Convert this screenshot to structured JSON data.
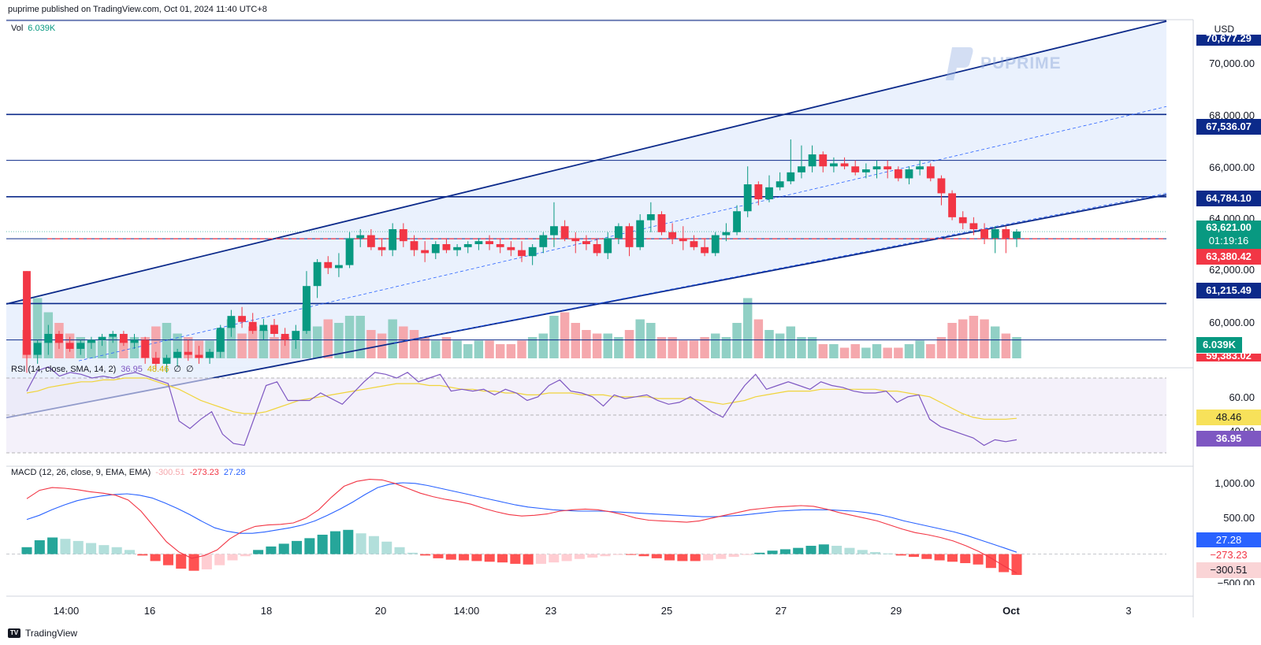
{
  "header": {
    "published": "puprime published on TradingView.com, Oct 01, 2024 11:40 UTC+8"
  },
  "currency": "USD",
  "watermark": "PUPRIME",
  "footer": {
    "brand": "TradingView"
  },
  "main_pane": {
    "legend": {
      "name": "Vol",
      "value": "6.039K"
    },
    "y_ticks": [
      "70,000.00",
      "68,000.00",
      "66,000.00",
      "64,000.00",
      "62,000.00",
      "60,000.00"
    ],
    "price_tags": {
      "top": "70,677.29",
      "level_67536": "67,536.07",
      "level_64784": "64,784.10",
      "current": "63,621.00",
      "countdown": "01:19:16",
      "level_63380": "63,380.42",
      "level_61215": "61,215.49",
      "volume": "6.039K",
      "bottom": "59,383.02"
    }
  },
  "rsi_pane": {
    "legend": {
      "name": "RSI (14, close, SMA, 14, 2)",
      "rsi": "36.95",
      "sma": "48.46",
      "e1": "∅",
      "e2": "∅"
    },
    "y_ticks": [
      "60.00",
      "40.00"
    ],
    "tags": {
      "sma": "48.46",
      "rsi": "36.95"
    }
  },
  "macd_pane": {
    "legend": {
      "name": "MACD (12, 26, close, 9, EMA, EMA)",
      "hist": "-300.51",
      "macd": "-273.23",
      "signal": "27.28"
    },
    "y_ticks": [
      "1,000.00",
      "500.00",
      "−500.00"
    ],
    "tags": {
      "signal": "27.28",
      "macd": "−273.23",
      "hist": "−300.51"
    }
  },
  "x_axis": {
    "labels": [
      "14:00",
      "16",
      "18",
      "20",
      "14:00",
      "23",
      "25",
      "27",
      "29",
      "Oct",
      "3"
    ]
  },
  "colors": {
    "up": "#089981",
    "down": "#f23645",
    "up_vol": "#91d0c5",
    "down_vol": "#f5a8ad",
    "line_navy": "#0c2a8a",
    "rsi": "#7e57c2",
    "rsi_sma": "#f7e15a",
    "macd": "#2962ff",
    "signal": "#f23645",
    "channel_fill": "#e8f0fd"
  },
  "chart_data": [
    {
      "type": "candlestick",
      "title": "",
      "y_axis_currency": "USD",
      "ylim": [
        59383,
        70677
      ],
      "x_categories_note": "",
      "candles": [
        [
          62300,
          62300,
          58900,
          59500
        ],
        [
          59500,
          60000,
          59200,
          59900
        ],
        [
          59900,
          60500,
          59500,
          60200
        ],
        [
          60200,
          60300,
          59700,
          59900
        ],
        [
          59900,
          60100,
          59600,
          59700
        ],
        [
          59700,
          60000,
          59500,
          59900
        ],
        [
          59900,
          60100,
          59700,
          60000
        ],
        [
          60000,
          60200,
          59800,
          60100
        ],
        [
          60100,
          60300,
          59900,
          60200
        ],
        [
          60200,
          60300,
          59800,
          59900
        ],
        [
          59900,
          60200,
          59700,
          60000
        ],
        [
          60000,
          60100,
          59200,
          59400
        ],
        [
          59400,
          59600,
          59000,
          59200
        ],
        [
          59200,
          59500,
          58900,
          59400
        ],
        [
          59400,
          59700,
          59100,
          59600
        ],
        [
          59600,
          60000,
          59300,
          59500
        ],
        [
          59500,
          59800,
          59200,
          59400
        ],
        [
          59400,
          59700,
          59200,
          59600
        ],
        [
          59600,
          60500,
          59400,
          60400
        ],
        [
          60400,
          61000,
          60100,
          60800
        ],
        [
          60800,
          61100,
          60400,
          60600
        ],
        [
          60600,
          60900,
          60200,
          60300
        ],
        [
          60300,
          60700,
          60000,
          60500
        ],
        [
          60500,
          60700,
          60100,
          60200
        ],
        [
          60200,
          60400,
          59800,
          60000
        ],
        [
          60000,
          60500,
          59700,
          60300
        ],
        [
          60300,
          62300,
          60200,
          61800
        ],
        [
          61800,
          62700,
          61400,
          62600
        ],
        [
          62600,
          62800,
          62200,
          62400
        ],
        [
          62400,
          62900,
          62100,
          62500
        ],
        [
          62500,
          63600,
          62400,
          63400
        ],
        [
          63400,
          63700,
          63100,
          63500
        ],
        [
          63500,
          63700,
          63000,
          63100
        ],
        [
          63100,
          63400,
          62800,
          63000
        ],
        [
          63000,
          63900,
          62800,
          63700
        ],
        [
          63700,
          63900,
          63100,
          63300
        ],
        [
          63300,
          63500,
          62800,
          63000
        ],
        [
          63000,
          63300,
          62600,
          62900
        ],
        [
          62900,
          63300,
          62700,
          63200
        ],
        [
          63200,
          63400,
          62900,
          63000
        ],
        [
          63000,
          63200,
          62800,
          63100
        ],
        [
          63100,
          63300,
          62900,
          63200
        ],
        [
          63200,
          63400,
          63000,
          63300
        ],
        [
          63300,
          63500,
          63000,
          63200
        ],
        [
          63200,
          63400,
          62900,
          63100
        ],
        [
          63100,
          63300,
          62800,
          63000
        ],
        [
          63000,
          63300,
          62600,
          62800
        ],
        [
          62800,
          63200,
          62500,
          63100
        ],
        [
          63100,
          63600,
          62900,
          63500
        ],
        [
          63500,
          64600,
          63100,
          63800
        ],
        [
          63800,
          64000,
          63300,
          63400
        ],
        [
          63400,
          63600,
          62900,
          63300
        ],
        [
          63300,
          63500,
          63000,
          63200
        ],
        [
          63200,
          63400,
          62800,
          62900
        ],
        [
          62900,
          63600,
          62700,
          63400
        ],
        [
          63400,
          63900,
          63200,
          63800
        ],
        [
          63800,
          63900,
          62800,
          63100
        ],
        [
          63100,
          64200,
          63000,
          64000
        ],
        [
          64000,
          64600,
          63600,
          64200
        ],
        [
          64200,
          64300,
          63500,
          63600
        ],
        [
          63600,
          63900,
          63200,
          63400
        ],
        [
          63400,
          63800,
          63000,
          63300
        ],
        [
          63300,
          63500,
          63000,
          63100
        ],
        [
          63100,
          63400,
          62800,
          62900
        ],
        [
          62900,
          63600,
          62800,
          63500
        ],
        [
          63500,
          63900,
          63300,
          63600
        ],
        [
          63600,
          64500,
          63500,
          64300
        ],
        [
          64300,
          65800,
          64100,
          65200
        ],
        [
          65200,
          65300,
          64500,
          64700
        ],
        [
          64700,
          65500,
          64600,
          65100
        ],
        [
          65100,
          65600,
          65000,
          65300
        ],
        [
          65300,
          66700,
          65200,
          65600
        ],
        [
          65600,
          66500,
          65400,
          65800
        ],
        [
          65800,
          66500,
          65600,
          66200
        ],
        [
          66200,
          66300,
          65600,
          65800
        ],
        [
          65800,
          66100,
          65600,
          65900
        ],
        [
          65900,
          66100,
          65700,
          65800
        ],
        [
          65800,
          66000,
          65500,
          65600
        ],
        [
          65600,
          65900,
          65400,
          65700
        ],
        [
          65700,
          66000,
          65400,
          65800
        ],
        [
          65800,
          66000,
          65400,
          65700
        ],
        [
          65700,
          65800,
          65300,
          65400
        ],
        [
          65400,
          65800,
          65200,
          65700
        ],
        [
          65700,
          66000,
          65500,
          65800
        ],
        [
          65800,
          65900,
          65300,
          65400
        ],
        [
          65400,
          65500,
          64500,
          64900
        ],
        [
          64900,
          65000,
          64000,
          64100
        ],
        [
          64100,
          64300,
          63700,
          63900
        ],
        [
          63900,
          64100,
          63500,
          63700
        ],
        [
          63700,
          63900,
          63200,
          63400
        ],
        [
          63400,
          63800,
          62900,
          63700
        ],
        [
          63700,
          63800,
          62900,
          63400
        ],
        [
          63400,
          63700,
          63100,
          63621
        ]
      ],
      "volume_relative": [
        0.4,
        0.85,
        0.65,
        0.5,
        0.35,
        0.3,
        0.25,
        0.25,
        0.3,
        0.25,
        0.3,
        0.3,
        0.45,
        0.5,
        0.35,
        0.3,
        0.25,
        0.25,
        0.4,
        0.55,
        0.35,
        0.45,
        0.4,
        0.3,
        0.3,
        0.25,
        0.75,
        0.45,
        0.55,
        0.5,
        0.6,
        0.6,
        0.4,
        0.35,
        0.55,
        0.45,
        0.4,
        0.3,
        0.25,
        0.3,
        0.25,
        0.2,
        0.25,
        0.25,
        0.2,
        0.2,
        0.25,
        0.3,
        0.35,
        0.6,
        0.65,
        0.5,
        0.4,
        0.35,
        0.35,
        0.3,
        0.4,
        0.55,
        0.5,
        0.3,
        0.3,
        0.25,
        0.25,
        0.3,
        0.35,
        0.3,
        0.5,
        0.85,
        0.55,
        0.4,
        0.35,
        0.45,
        0.3,
        0.3,
        0.2,
        0.2,
        0.15,
        0.2,
        0.15,
        0.2,
        0.15,
        0.15,
        0.2,
        0.25,
        0.2,
        0.3,
        0.5,
        0.55,
        0.6,
        0.55,
        0.45,
        0.35,
        0.3
      ],
      "horizontal_levels": [
        70677.29,
        67536.07,
        66000,
        64784.1,
        63380.42,
        61215.49,
        60000
      ],
      "trend_lines": [
        {
          "from": [
            0,
            61200
          ],
          "to": [
            1,
            70650
          ]
        },
        {
          "from": [
            0,
            57400
          ],
          "to": [
            1,
            64850
          ]
        }
      ]
    },
    {
      "type": "line",
      "title": "RSI (14, close, SMA, 14, 2)",
      "ylim": [
        20,
        80
      ],
      "series": [
        {
          "name": "RSI",
          "values": [
            63,
            74,
            76,
            71,
            73,
            72,
            70,
            71,
            70,
            72,
            73,
            71,
            69,
            67,
            47,
            43,
            48,
            52,
            40,
            35,
            34,
            50,
            66,
            68,
            58,
            58,
            58,
            62,
            59,
            56,
            62,
            68,
            73,
            72,
            70,
            73,
            68,
            70,
            72,
            63,
            64,
            63,
            64,
            61,
            64,
            62,
            58,
            60,
            66,
            69,
            63,
            62,
            60,
            55,
            61,
            59,
            60,
            61,
            58,
            56,
            57,
            60,
            56,
            52,
            49,
            58,
            66,
            72,
            64,
            66,
            68,
            66,
            64,
            68,
            66,
            65,
            63,
            62,
            62,
            63,
            57,
            60,
            61,
            48,
            44,
            42,
            40,
            38,
            34,
            37,
            36,
            37
          ]
        },
        {
          "name": "SMA",
          "values": [
            62,
            63,
            65,
            66,
            67,
            68,
            68,
            69,
            69,
            70,
            70,
            70,
            68,
            66,
            64,
            61,
            58,
            56,
            54,
            52,
            51,
            51,
            52,
            54,
            56,
            58,
            59,
            60,
            61,
            62,
            63,
            64,
            65,
            66,
            67,
            67,
            67,
            66,
            66,
            65,
            64,
            64,
            63,
            63,
            62,
            62,
            61,
            61,
            62,
            62,
            62,
            61,
            61,
            61,
            60,
            60,
            60,
            60,
            59,
            59,
            59,
            59,
            58,
            57,
            56,
            57,
            58,
            60,
            61,
            62,
            63,
            63,
            63,
            64,
            64,
            64,
            64,
            64,
            64,
            63,
            63,
            62,
            61,
            60,
            57,
            54,
            51,
            49,
            48,
            48,
            48,
            48.46
          ]
        }
      ]
    },
    {
      "type": "line",
      "title": "MACD (12, 26, close, 9, EMA, EMA)",
      "ylim": [
        -550,
        1200
      ],
      "series": [
        {
          "name": "MACD",
          "values": [
            800,
            920,
            960,
            950,
            930,
            900,
            880,
            850,
            780,
            620,
            400,
            180,
            30,
            -60,
            -20,
            60,
            220,
            330,
            400,
            420,
            430,
            450,
            520,
            640,
            820,
            980,
            1050,
            1080,
            1070,
            1020,
            950,
            880,
            830,
            790,
            760,
            720,
            660,
            610,
            570,
            550,
            560,
            580,
            620,
            640,
            650,
            640,
            610,
            570,
            520,
            490,
            480,
            470,
            460,
            480,
            520,
            560,
            600,
            640,
            660,
            680,
            690,
            700,
            690,
            650,
            600,
            560,
            520,
            480,
            420,
            360,
            310,
            280,
            240,
            190,
            120,
            40,
            -60,
            -170,
            -273.23
          ]
        },
        {
          "name": "Signal",
          "values": [
            500,
            560,
            640,
            710,
            770,
            810,
            840,
            860,
            870,
            850,
            810,
            740,
            660,
            570,
            470,
            380,
            330,
            300,
            300,
            320,
            350,
            380,
            420,
            480,
            560,
            650,
            750,
            860,
            960,
            1010,
            1030,
            1020,
            990,
            950,
            910,
            870,
            830,
            790,
            750,
            710,
            680,
            660,
            640,
            630,
            620,
            620,
            620,
            610,
            600,
            590,
            580,
            570,
            560,
            550,
            540,
            540,
            550,
            560,
            580,
            600,
            620,
            630,
            640,
            640,
            640,
            630,
            620,
            600,
            570,
            530,
            480,
            440,
            400,
            360,
            320,
            270,
            210,
            150,
            90,
            27.28
          ]
        },
        {
          "name": "Histogram",
          "values": [
            100,
            200,
            240,
            220,
            190,
            160,
            130,
            100,
            60,
            -20,
            -100,
            -160,
            -210,
            -240,
            -220,
            -160,
            -90,
            -30,
            60,
            110,
            150,
            190,
            230,
            280,
            330,
            350,
            300,
            260,
            180,
            100,
            20,
            -20,
            -60,
            -80,
            -90,
            -100,
            -110,
            -120,
            -140,
            -150,
            -140,
            -120,
            -100,
            -70,
            -50,
            -30,
            -10,
            -10,
            -30,
            -60,
            -90,
            -100,
            -100,
            -90,
            -70,
            -40,
            -10,
            20,
            50,
            70,
            90,
            120,
            140,
            120,
            90,
            60,
            30,
            10,
            -20,
            -40,
            -70,
            -90,
            -110,
            -130,
            -150,
            -200,
            -260,
            -300.51
          ]
        }
      ]
    }
  ]
}
